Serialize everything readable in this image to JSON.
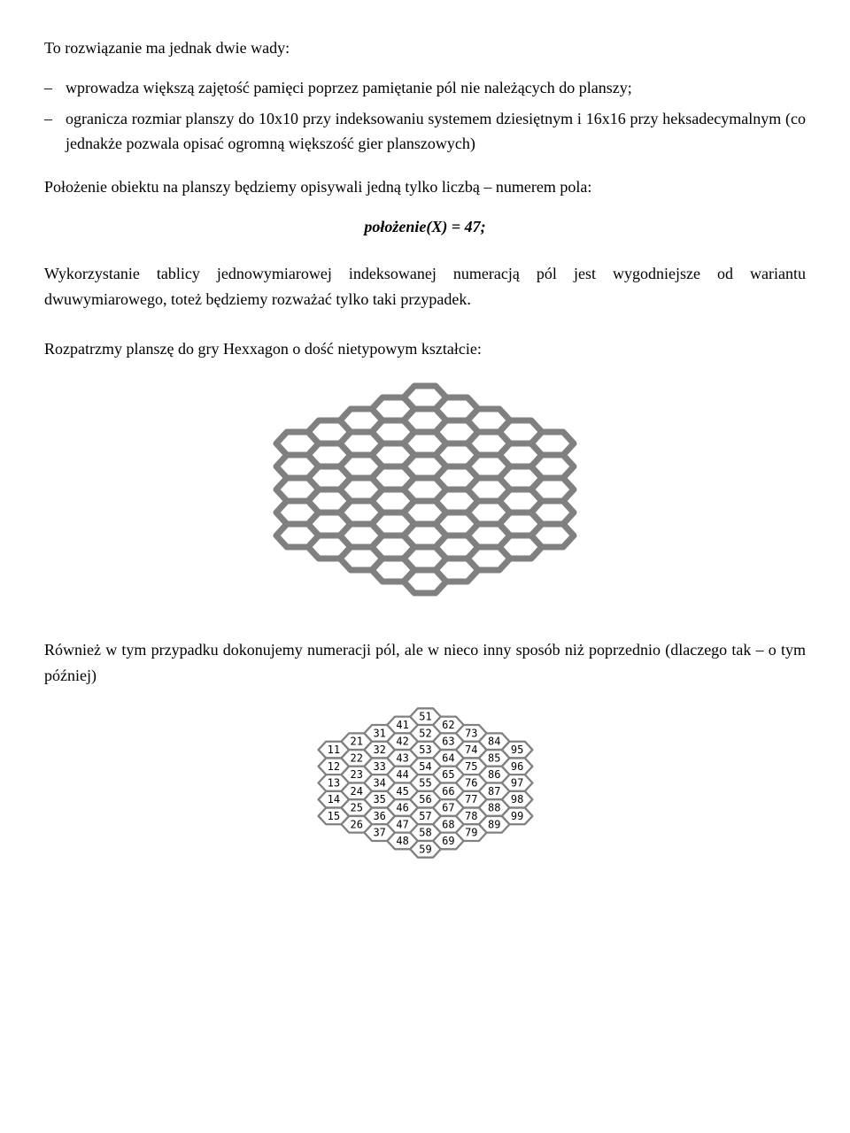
{
  "intro": "To rozwiązanie ma jednak dwie wady:",
  "bullet1": "wprowadza większą zajętość pamięci poprzez pamiętanie pól nie należących do planszy;",
  "bullet2": "ogranicza  rozmiar planszy do 10x10 przy indeksowaniu systemem dziesiętnym i 16x16 przy heksadecymalnym (co jednakże pozwala opisać ogromną większość gier planszowych)",
  "para_position": "Położenie obiektu na planszy będziemy opisywali jedną tylko liczbą – numerem pola:",
  "formula": "położenie(X) = 47;",
  "para_usage": "Wykorzystanie tablicy jednowymiarowej indeksowanej numeracją pól jest wygodniejsze od wariantu dwuwymiarowego, toteż będziemy rozważać tylko taki przypadek.",
  "para_hexxagon": "Rozpatrzmy planszę do gry Hexxagon o dość nietypowym kształcie:",
  "para_numeration": "Również w tym przypadku dokonujemy numeracji pól, ale w nieco inny sposób niż poprzednio (dlaczego tak – o tym później)",
  "hex_style": {
    "stroke": "#808080",
    "stroke_width_big": 7,
    "stroke_width_small": 3.2,
    "fill": "#ffffff",
    "label_font": "DejaVu Sans Mono, Consolas, monospace",
    "label_size": 12,
    "label_color": "#000000"
  },
  "board_cols": [
    {
      "col": 1,
      "rows": [
        1,
        2,
        3,
        4,
        5
      ]
    },
    {
      "col": 2,
      "rows": [
        1,
        2,
        3,
        4,
        5,
        6
      ]
    },
    {
      "col": 3,
      "rows": [
        1,
        2,
        3,
        4,
        5,
        6,
        7
      ]
    },
    {
      "col": 4,
      "rows": [
        1,
        2,
        3,
        4,
        5,
        6,
        7,
        8
      ]
    },
    {
      "col": 5,
      "rows": [
        1,
        2,
        3,
        4,
        5,
        6,
        7,
        8,
        9
      ]
    },
    {
      "col": 6,
      "rows": [
        2,
        3,
        4,
        5,
        6,
        7,
        8,
        9
      ]
    },
    {
      "col": 7,
      "rows": [
        3,
        4,
        5,
        6,
        7,
        8,
        9
      ]
    },
    {
      "col": 8,
      "rows": [
        4,
        5,
        6,
        7,
        8,
        9
      ]
    },
    {
      "col": 9,
      "rows": [
        5,
        6,
        7,
        8,
        9
      ]
    }
  ],
  "fig1": {
    "scale": 1.0,
    "show_labels": false
  },
  "fig2": {
    "scale": 0.72,
    "show_labels": true
  }
}
